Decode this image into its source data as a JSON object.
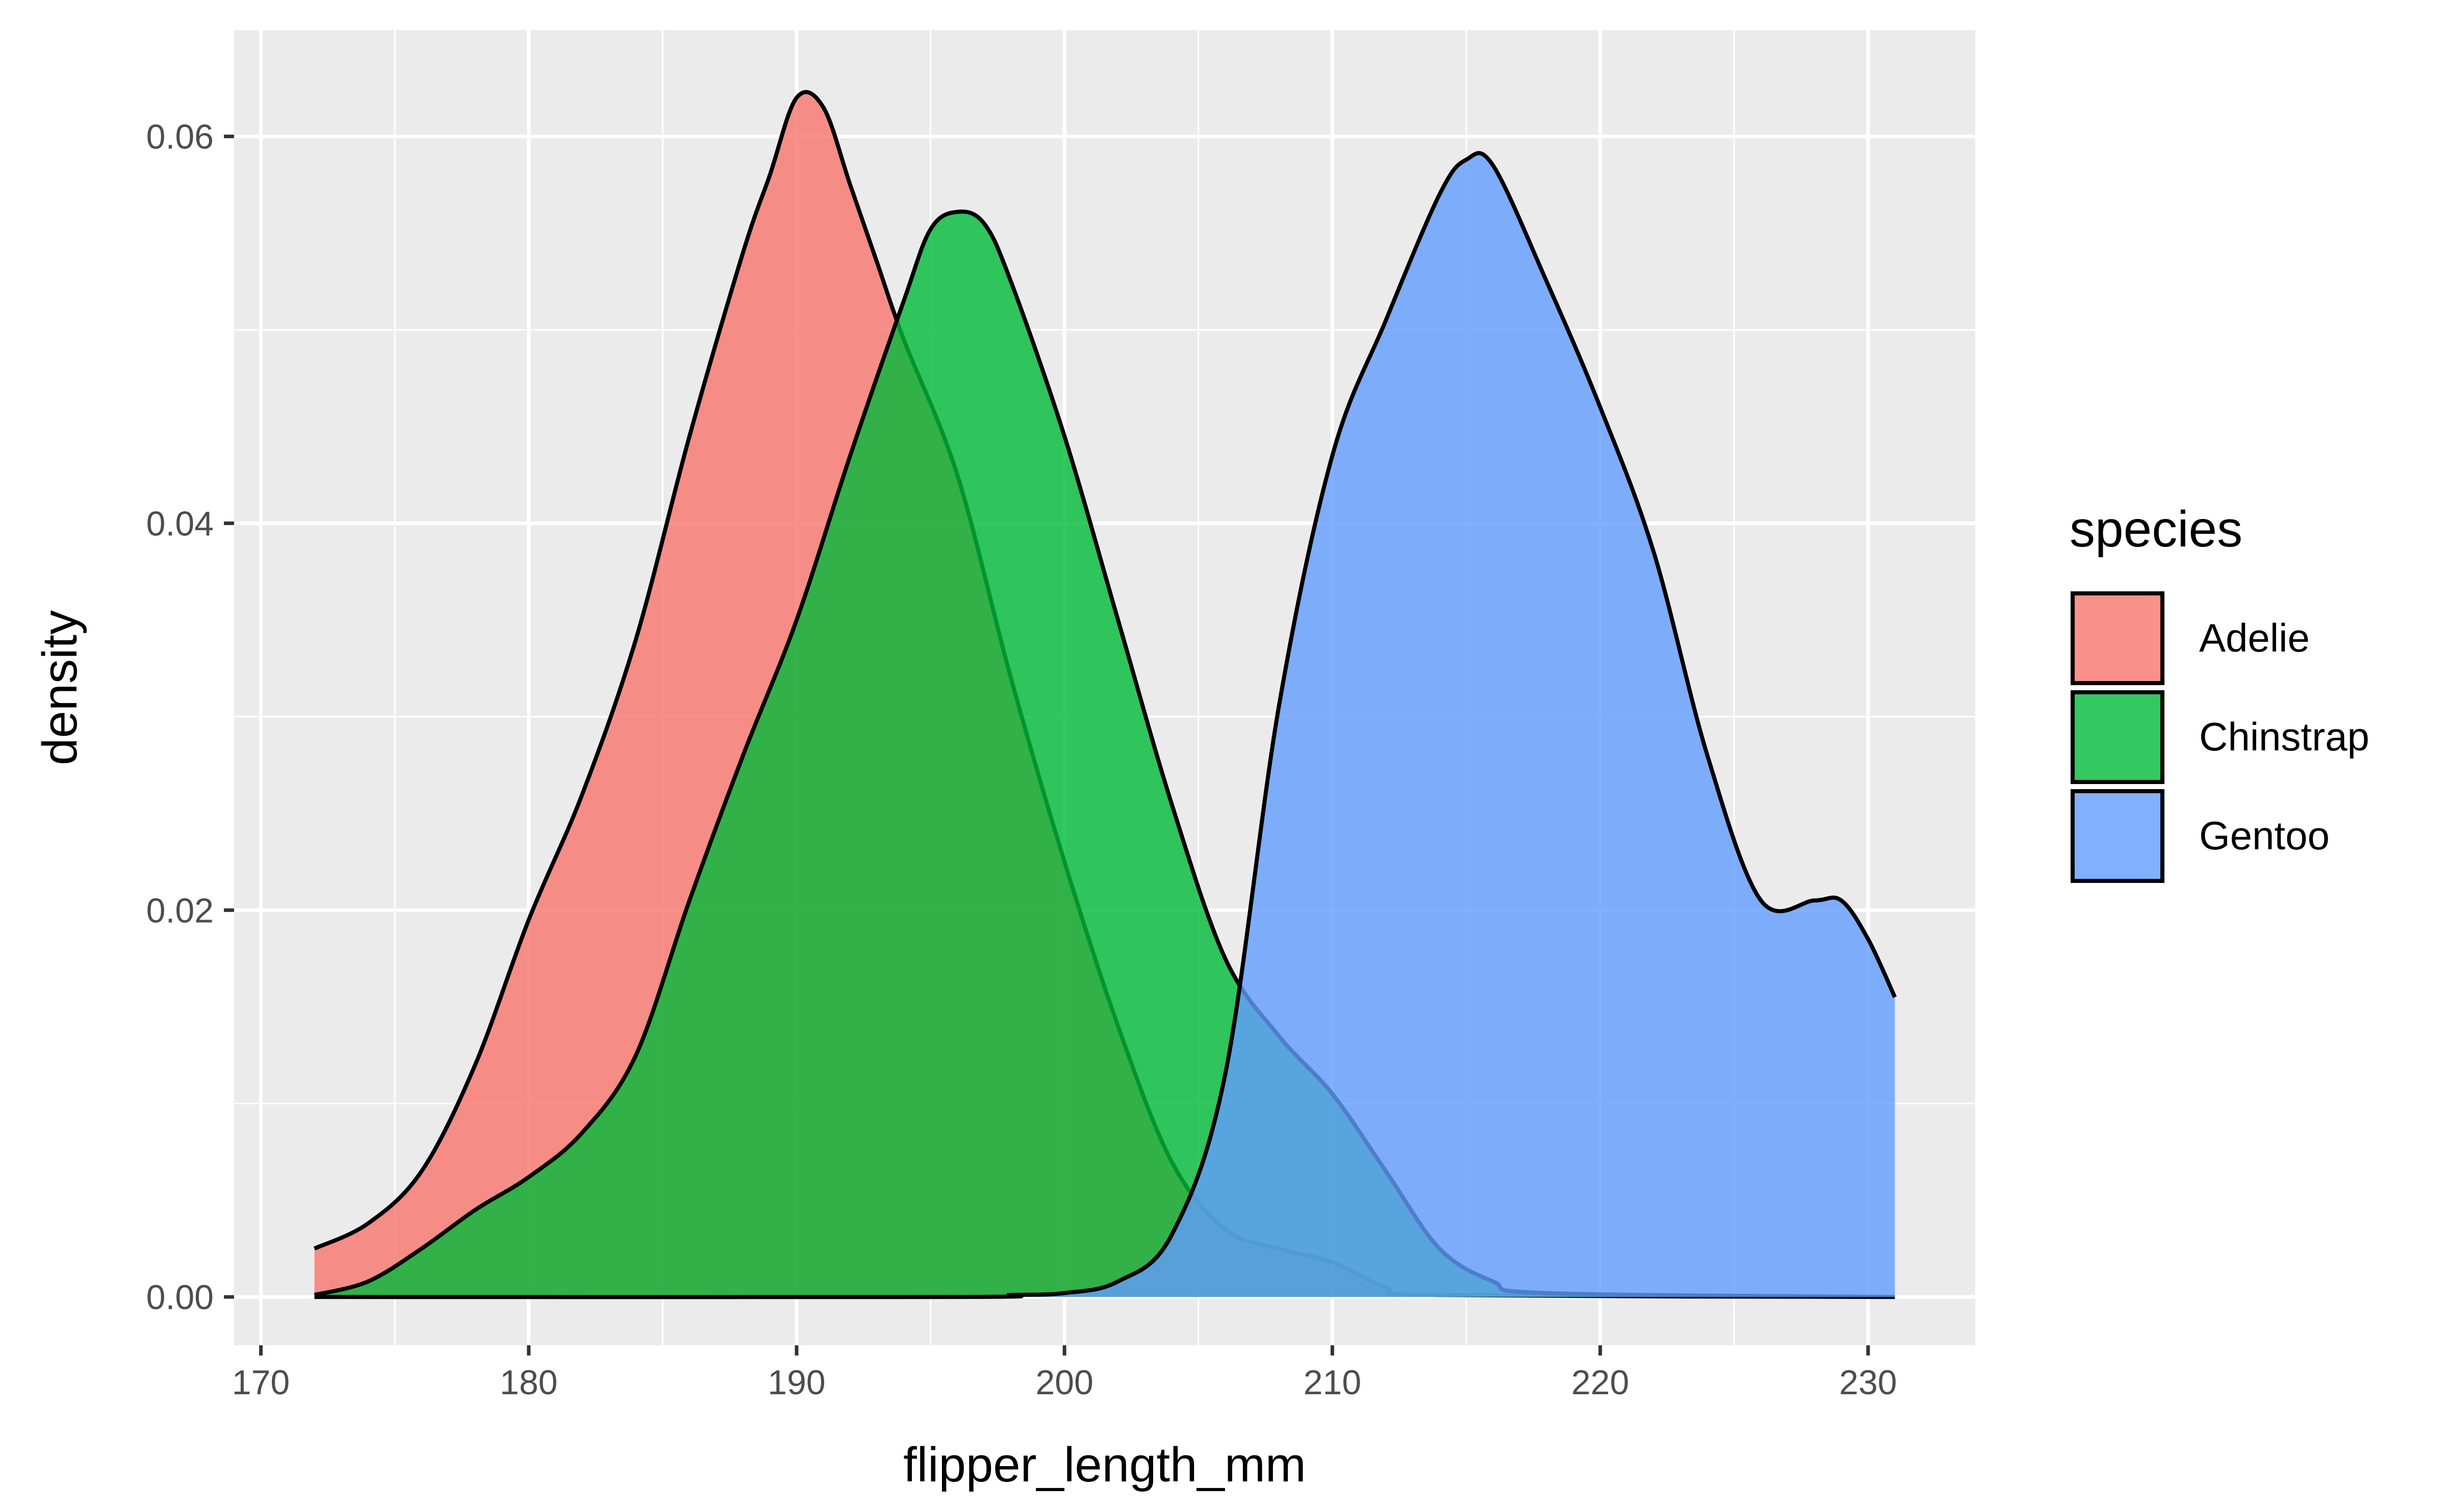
{
  "chart_data": {
    "type": "area",
    "subtype": "density",
    "title": "",
    "xlabel": "flipper_length_mm",
    "ylabel": "density",
    "xlim": [
      169,
      234
    ],
    "ylim": [
      -0.0025,
      0.0655
    ],
    "x_ticks": [
      170,
      180,
      190,
      200,
      210,
      220,
      230
    ],
    "x_tick_labels": [
      "170",
      "180",
      "190",
      "200",
      "210",
      "220",
      "230"
    ],
    "y_ticks": [
      0.0,
      0.02,
      0.04,
      0.06
    ],
    "y_tick_labels": [
      "0.00",
      "0.02",
      "0.04",
      "0.06"
    ],
    "grid": true,
    "fill_alpha": 0.8,
    "legend": {
      "title": "species",
      "position": "right"
    },
    "series": [
      {
        "name": "Adelie",
        "color": "#F8766D",
        "points": [
          [
            172,
            0.0025
          ],
          [
            174,
            0.0038
          ],
          [
            176,
            0.0065
          ],
          [
            178,
            0.012
          ],
          [
            180,
            0.0195
          ],
          [
            182,
            0.026
          ],
          [
            184,
            0.034
          ],
          [
            186,
            0.0445
          ],
          [
            188,
            0.054
          ],
          [
            189,
            0.058
          ],
          [
            190,
            0.062
          ],
          [
            191,
            0.0615
          ],
          [
            192,
            0.0575
          ],
          [
            193,
            0.0535
          ],
          [
            194,
            0.0495
          ],
          [
            196,
            0.0425
          ],
          [
            198,
            0.032
          ],
          [
            200,
            0.0225
          ],
          [
            202,
            0.014
          ],
          [
            204,
            0.007
          ],
          [
            206,
            0.0035
          ],
          [
            208,
            0.0025
          ],
          [
            210,
            0.0018
          ],
          [
            212,
            0.0005
          ],
          [
            214,
            0.0001
          ],
          [
            231,
            0.0
          ]
        ]
      },
      {
        "name": "Chinstrap",
        "color": "#00BA38",
        "points": [
          [
            172,
            0.0001
          ],
          [
            174,
            0.0008
          ],
          [
            176,
            0.0025
          ],
          [
            178,
            0.0045
          ],
          [
            180,
            0.0062
          ],
          [
            182,
            0.0085
          ],
          [
            184,
            0.0125
          ],
          [
            186,
            0.0205
          ],
          [
            188,
            0.028
          ],
          [
            190,
            0.035
          ],
          [
            192,
            0.0435
          ],
          [
            194,
            0.0515
          ],
          [
            195,
            0.0552
          ],
          [
            196,
            0.0561
          ],
          [
            197,
            0.0555
          ],
          [
            198,
            0.0525
          ],
          [
            200,
            0.0445
          ],
          [
            202,
            0.035
          ],
          [
            204,
            0.0255
          ],
          [
            206,
            0.0175
          ],
          [
            208,
            0.0135
          ],
          [
            210,
            0.0105
          ],
          [
            212,
            0.0065
          ],
          [
            214,
            0.0025
          ],
          [
            216,
            0.0008
          ],
          [
            218,
            0.0002
          ],
          [
            231,
            0.0
          ]
        ]
      },
      {
        "name": "Gentoo",
        "color": "#619CFF",
        "points": [
          [
            172,
            0.0
          ],
          [
            196,
            0.0
          ],
          [
            198,
            0.0001
          ],
          [
            200,
            0.0002
          ],
          [
            202,
            0.0008
          ],
          [
            204,
            0.0032
          ],
          [
            206,
            0.0115
          ],
          [
            208,
            0.0305
          ],
          [
            210,
            0.0435
          ],
          [
            212,
            0.0505
          ],
          [
            214,
            0.057
          ],
          [
            215,
            0.0588
          ],
          [
            216,
            0.0585
          ],
          [
            218,
            0.0525
          ],
          [
            220,
            0.046
          ],
          [
            222,
            0.0385
          ],
          [
            224,
            0.028
          ],
          [
            226,
            0.0205
          ],
          [
            228,
            0.0205
          ],
          [
            229,
            0.0205
          ],
          [
            230,
            0.0185
          ],
          [
            231,
            0.0155
          ]
        ]
      }
    ]
  }
}
